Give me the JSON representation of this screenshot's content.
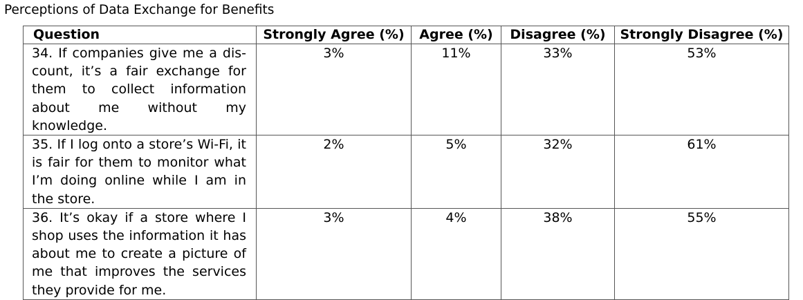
{
  "caption": "Perceptions of Data Exchange for Benefits",
  "table": {
    "headers": {
      "question": "Question",
      "strongly_agree": "Strongly Agree (%)",
      "agree": "Agree (%)",
      "disagree": "Disagree (%)",
      "strongly_disagree": "Strongly Disagree (%)"
    },
    "rows": [
      {
        "question": "34. If companies give me a dis­count, it’s a fair exchange for them to collect information about me without my knowledge.",
        "strongly_agree": "3%",
        "agree": "11%",
        "disagree": "33%",
        "strongly_disagree": "53%"
      },
      {
        "question": "35. If I log onto a store’s Wi-Fi, it is fair for them to monitor what I’m doing online while I am in the store.",
        "strongly_agree": "2%",
        "agree": "5%",
        "disagree": "32%",
        "strongly_disagree": "61%"
      },
      {
        "question": "36. It’s okay if a store where I shop uses the information it has about me to create a picture of me that improves the services they provide for me.",
        "strongly_agree": "3%",
        "agree": "4%",
        "disagree": "38%",
        "strongly_disagree": "55%"
      }
    ]
  }
}
